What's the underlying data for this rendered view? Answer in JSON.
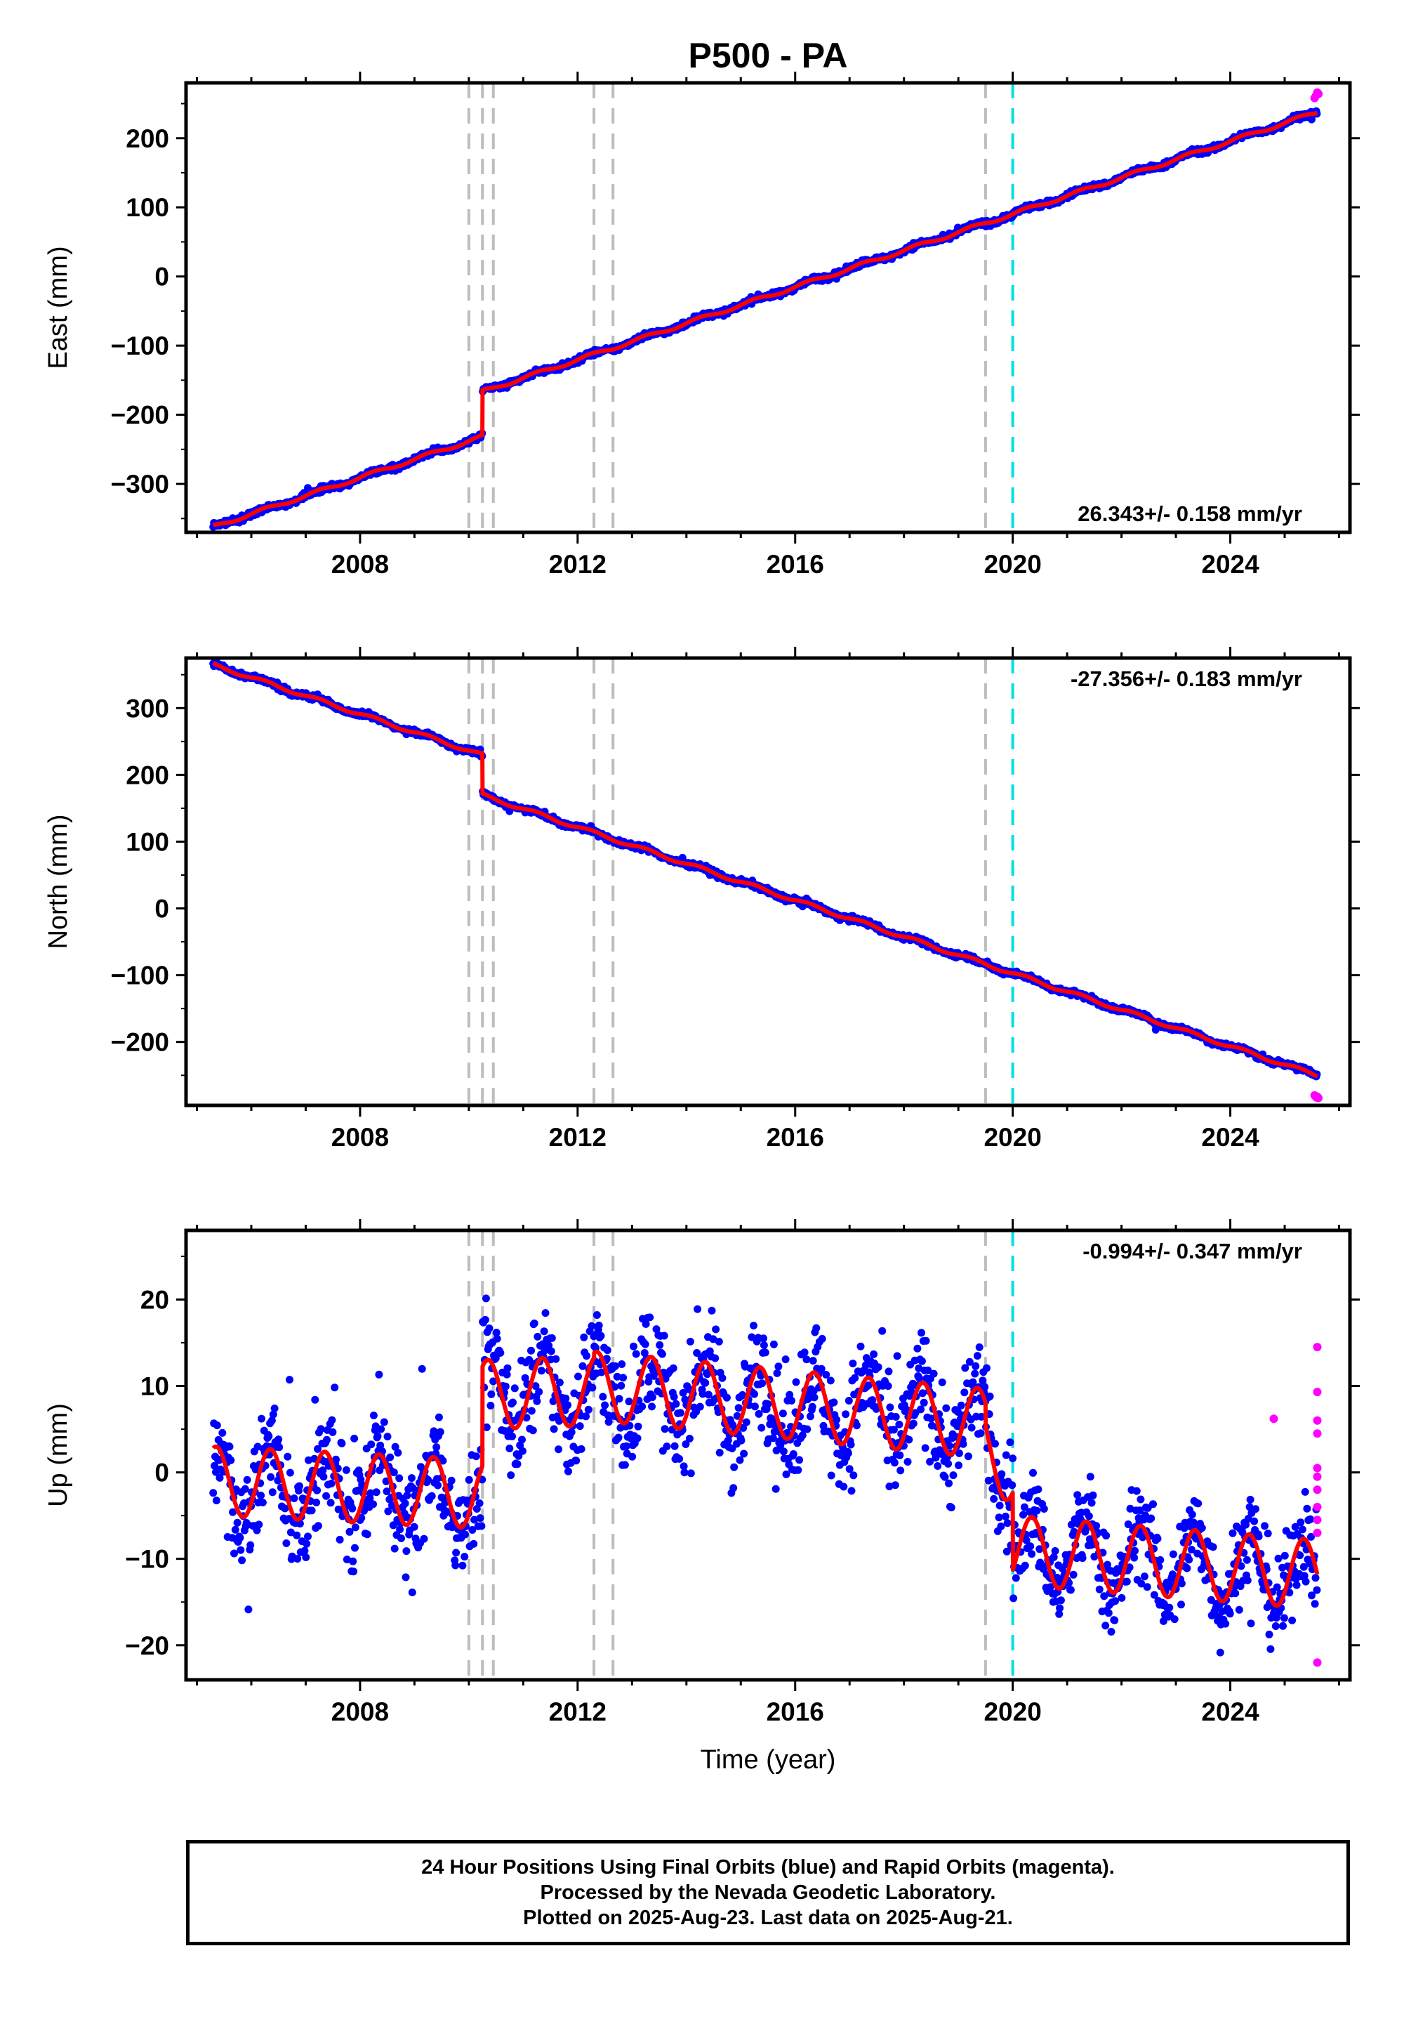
{
  "title": "P500 - PA",
  "colors": {
    "final": "#0000ff",
    "rapid": "#ff00ff",
    "model": "#ff0000",
    "break": "#bdbdbd",
    "cutoff": "#00e0e0"
  },
  "chart_data": [
    {
      "type": "scatter",
      "name": "east",
      "ylabel": "East (mm)",
      "xlim": [
        2004.8,
        2026.2
      ],
      "ylim": [
        -370,
        280
      ],
      "yticks": [
        "-300",
        "-200",
        "-100",
        "0",
        "100",
        "200"
      ],
      "yticks_values": [
        -300,
        -200,
        -100,
        0,
        100,
        200
      ],
      "xticks": [
        "2008",
        "2012",
        "2016",
        "2020",
        "2024"
      ],
      "xticks_values": [
        2008,
        2012,
        2016,
        2020,
        2024
      ],
      "rate_label": "26.343+/- 0.158 mm/yr",
      "rate_position": "bottom-right",
      "trend": {
        "rate": 26.343,
        "ref_year": 2005.3,
        "ref_value": -362,
        "offsets": [
          {
            "year": 2010.25,
            "step": 65
          }
        ]
      },
      "noise": 3,
      "breaks_gray": [
        2010.0,
        2010.25,
        2010.45,
        2012.3,
        2012.65,
        2019.5
      ],
      "break_cyan": 2020.0,
      "rapid_points": [
        [
          2025.55,
          258
        ],
        [
          2025.58,
          262
        ],
        [
          2025.6,
          266
        ],
        [
          2025.62,
          264
        ]
      ]
    },
    {
      "type": "scatter",
      "name": "north",
      "ylabel": "North (mm)",
      "xlim": [
        2004.8,
        2026.2
      ],
      "ylim": [
        -295,
        375
      ],
      "yticks": [
        "-200",
        "-100",
        "0",
        "100",
        "200",
        "300"
      ],
      "yticks_values": [
        -200,
        -100,
        0,
        100,
        200,
        300
      ],
      "xticks": [
        "2008",
        "2012",
        "2016",
        "2020",
        "2024"
      ],
      "xticks_values": [
        2008,
        2012,
        2016,
        2020,
        2024
      ],
      "rate_label": "-27.356+/- 0.183 mm/yr",
      "rate_position": "top-right",
      "trend": {
        "rate": -27.356,
        "ref_year": 2005.3,
        "ref_value": 365,
        "offsets": [
          {
            "year": 2010.25,
            "step": -60
          }
        ]
      },
      "noise": 3,
      "breaks_gray": [
        2010.0,
        2010.25,
        2010.45,
        2012.3,
        2012.65,
        2019.5
      ],
      "break_cyan": 2020.0,
      "rapid_points": [
        [
          2025.55,
          -280
        ],
        [
          2025.58,
          -283
        ],
        [
          2025.6,
          -282
        ],
        [
          2025.62,
          -284
        ]
      ]
    },
    {
      "type": "scatter",
      "name": "up",
      "ylabel": "Up (mm)",
      "xlabel": "Time (year)",
      "xlim": [
        2004.8,
        2026.2
      ],
      "ylim": [
        -24,
        28
      ],
      "yticks": [
        "-20",
        "-10",
        "0",
        "10",
        "20"
      ],
      "yticks_values": [
        -20,
        -10,
        0,
        10,
        20
      ],
      "xticks": [
        "2008",
        "2012",
        "2016",
        "2020",
        "2024"
      ],
      "xticks_values": [
        2008,
        2012,
        2016,
        2020,
        2024
      ],
      "rate_label": "-0.994+/- 0.347 mm/yr",
      "rate_position": "top-right",
      "seasonal_amplitude": 4,
      "segments": [
        {
          "start": 2005.3,
          "end": 2010.25,
          "base": -1,
          "slope": -0.3
        },
        {
          "start": 2010.25,
          "end": 2012.3,
          "base": 9,
          "slope": 0.2
        },
        {
          "start": 2012.3,
          "end": 2019.5,
          "base": 10,
          "slope": -0.6
        },
        {
          "start": 2019.5,
          "end": 2020.0,
          "base": 3,
          "slope": -6
        },
        {
          "start": 2020.0,
          "end": 2025.6,
          "base": -9,
          "slope": -0.5
        }
      ],
      "noise": 4.5,
      "breaks_gray": [
        2010.0,
        2010.25,
        2010.45,
        2012.3,
        2012.65,
        2019.5
      ],
      "break_cyan": 2020.0,
      "rapid_points": [
        [
          2025.6,
          14.5
        ],
        [
          2025.6,
          9.3
        ],
        [
          2025.6,
          6
        ],
        [
          2025.6,
          4.5
        ],
        [
          2025.6,
          0.5
        ],
        [
          2025.6,
          -0.5
        ],
        [
          2025.6,
          -2
        ],
        [
          2025.6,
          -4
        ],
        [
          2025.6,
          -5.5
        ],
        [
          2025.6,
          -7
        ],
        [
          2025.6,
          -22
        ],
        [
          2024.8,
          6.2
        ]
      ]
    }
  ],
  "footer": {
    "line1": "24 Hour Positions Using Final Orbits (blue) and Rapid Orbits (magenta).",
    "line2": "Processed by the Nevada Geodetic Laboratory.",
    "line3": "Plotted on 2025-Aug-23. Last data on 2025-Aug-21."
  }
}
